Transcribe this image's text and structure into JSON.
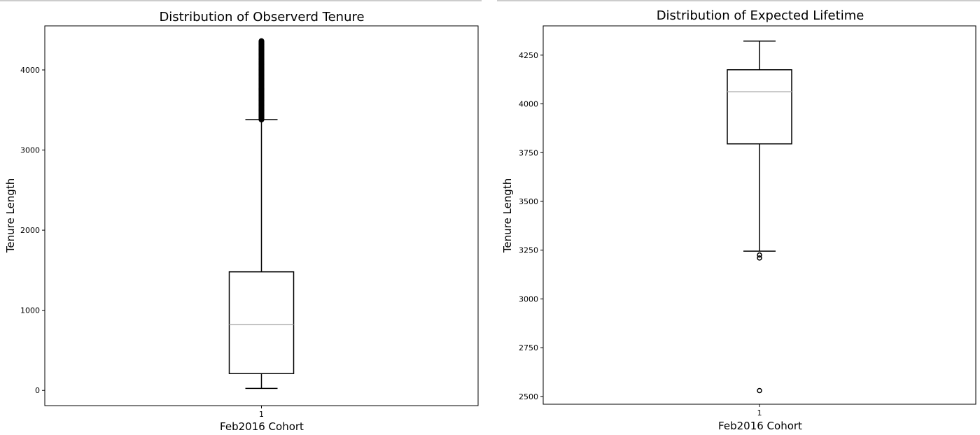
{
  "chart_data": [
    {
      "type": "box",
      "title": "Distribution of Observerd Tenure",
      "xlabel": "Feb2016 Cohort",
      "ylabel": "Tenure Length",
      "categories": [
        "1"
      ],
      "ylim": [
        -190,
        4550
      ],
      "yticks": [
        0,
        1000,
        2000,
        3000,
        4000
      ],
      "yticklabels": [
        "0",
        "1000",
        "2000",
        "3000",
        "4000"
      ],
      "boxes": [
        {
          "category": "1",
          "whisker_low": 25,
          "q1": 210,
          "median": 820,
          "q3": 1480,
          "whisker_high": 3380
        }
      ],
      "outliers": {
        "range": [
          3380,
          4360
        ],
        "note_dense": true
      },
      "colors": {
        "box": "#000000",
        "median": "#b0b0b0",
        "outlier": "#000000"
      },
      "grid": false,
      "legend": "none"
    },
    {
      "type": "box",
      "title": "Distribution of Expected Lifetime",
      "xlabel": "Feb2016 Cohort",
      "ylabel": "Tenure Length",
      "categories": [
        "1"
      ],
      "ylim": [
        2460,
        4400
      ],
      "yticks": [
        2500,
        2750,
        3000,
        3250,
        3500,
        3750,
        4000,
        4250
      ],
      "yticklabels": [
        "2500",
        "2750",
        "3000",
        "3250",
        "3500",
        "3750",
        "4000",
        "4250"
      ],
      "boxes": [
        {
          "category": "1",
          "whisker_low": 3245,
          "q1": 3795,
          "median": 4062,
          "q3": 4175,
          "whisker_high": 4322
        }
      ],
      "outliers": {
        "values": [
          3225,
          3210,
          2530
        ]
      },
      "colors": {
        "box": "#000000",
        "median": "#b0b0b0",
        "outlier": "#000000"
      },
      "grid": false,
      "legend": "none"
    }
  ]
}
